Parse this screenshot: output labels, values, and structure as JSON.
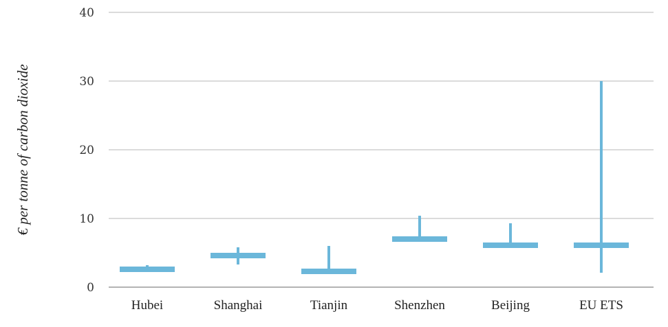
{
  "chart_data": {
    "type": "range",
    "ylabel": "€ per tonne of carbon dioxide",
    "ylim": [
      0,
      40
    ],
    "yticks": [
      "0",
      "10",
      "20",
      "30",
      "40"
    ],
    "ytick_values": [
      0,
      10,
      20,
      30,
      40
    ],
    "grid": true,
    "color": "#6bb7da",
    "categories": [
      "Hubei",
      "Shanghai",
      "Tianjin",
      "Shenzhen",
      "Beijing",
      "EU ETS"
    ],
    "series": [
      {
        "low": 2.5,
        "high": 3.2,
        "value": 2.6
      },
      {
        "low": 3.3,
        "high": 5.8,
        "value": 4.6
      },
      {
        "low": 2.3,
        "high": 6.0,
        "value": 2.3
      },
      {
        "low": 6.8,
        "high": 10.4,
        "value": 7.0
      },
      {
        "low": 6.0,
        "high": 9.3,
        "value": 6.1
      },
      {
        "low": 2.1,
        "high": 30.0,
        "value": 6.1
      }
    ]
  }
}
